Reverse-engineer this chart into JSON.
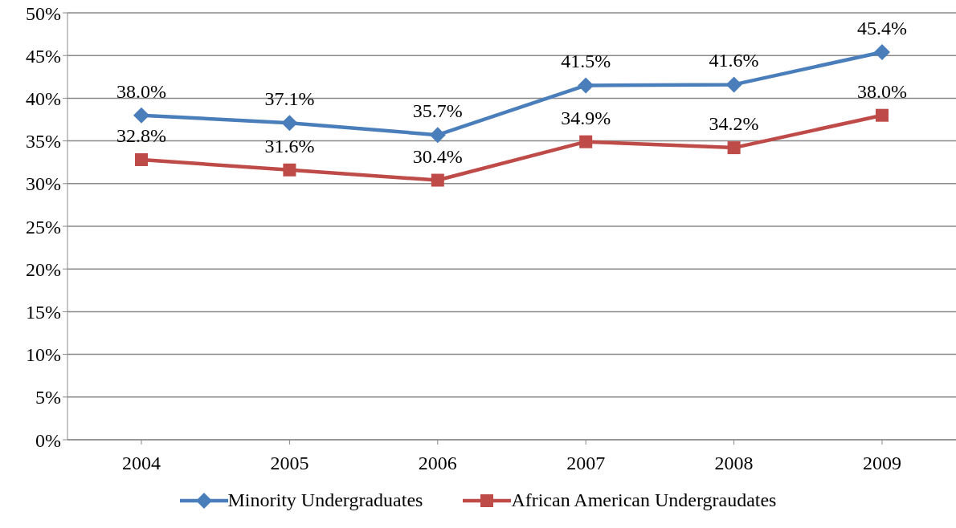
{
  "chart_data": {
    "type": "line",
    "categories": [
      "2004",
      "2005",
      "2006",
      "2007",
      "2008",
      "2009"
    ],
    "series": [
      {
        "name": "Minority Undergraduates",
        "color": "#4a7ebb",
        "marker": "diamond",
        "values": [
          38.0,
          37.1,
          35.7,
          41.5,
          41.6,
          45.4
        ],
        "value_labels": [
          "38.0%",
          "37.1%",
          "35.7%",
          "41.5%",
          "41.6%",
          "45.4%"
        ]
      },
      {
        "name": "African American Undergraudates",
        "color": "#be4b48",
        "marker": "square",
        "values": [
          32.8,
          31.6,
          30.4,
          34.9,
          34.2,
          38.0
        ],
        "value_labels": [
          "32.8%",
          "31.6%",
          "30.4%",
          "34.9%",
          "34.2%",
          "38.0%"
        ]
      }
    ],
    "ylim": [
      0,
      50
    ],
    "yticks": [
      {
        "value": 0,
        "label": "0%"
      },
      {
        "value": 5,
        "label": "5%"
      },
      {
        "value": 10,
        "label": "10%"
      },
      {
        "value": 15,
        "label": "15%"
      },
      {
        "value": 20,
        "label": "20%"
      },
      {
        "value": 25,
        "label": "25%"
      },
      {
        "value": 30,
        "label": "30%"
      },
      {
        "value": 35,
        "label": "35%"
      },
      {
        "value": 40,
        "label": "40%"
      },
      {
        "value": 45,
        "label": "45%"
      },
      {
        "value": 50,
        "label": "50%"
      }
    ],
    "grid": "y",
    "legend": "bottom",
    "line_style": "solid"
  }
}
